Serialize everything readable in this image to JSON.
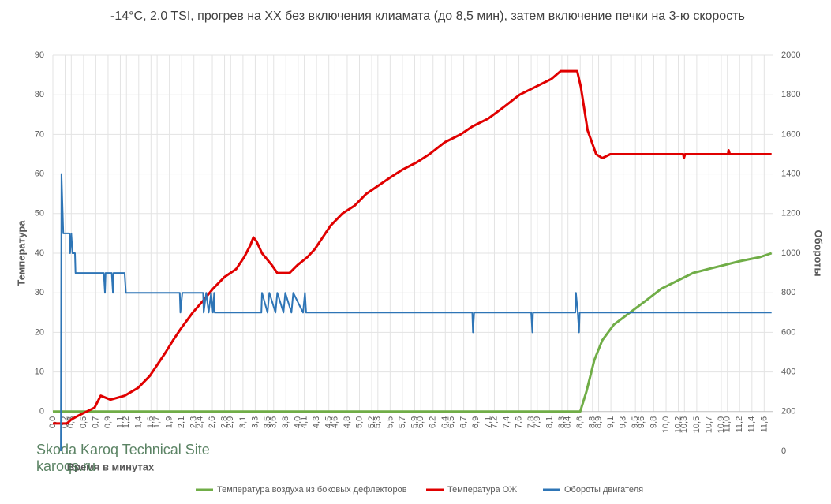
{
  "chart_data": {
    "type": "line",
    "title": "-14°C, 2.0 TSI, прогрев на ХХ без включения клиамата (до 8,5 мин), затем включение печки на 3-ю скорость",
    "ylabel": "Температура",
    "y2label": "Обороты",
    "xlabel": "Время в минутах",
    "watermark": [
      "Skoda Karoq Technical Site",
      "karoqs.ru"
    ],
    "xlim": [
      0,
      11.75
    ],
    "ylim": [
      -10,
      90
    ],
    "y2lim": [
      0,
      2000
    ],
    "yticks": [
      0,
      10,
      20,
      30,
      40,
      50,
      60,
      70,
      80,
      90
    ],
    "y2ticks": [
      0,
      200,
      400,
      600,
      800,
      1000,
      1200,
      1400,
      1600,
      1800,
      2000
    ],
    "xticks": [
      {
        "value": 0,
        "label": "0,0"
      },
      {
        "value": 0.2,
        "label": "0,2"
      },
      {
        "value": 0.3,
        "label": "0,3"
      },
      {
        "value": 0.5,
        "label": "0,5"
      },
      {
        "value": 0.7,
        "label": "0,7"
      },
      {
        "value": 0.9,
        "label": "0,9"
      },
      {
        "value": 1.1,
        "label": "1,1"
      },
      {
        "value": 1.2,
        "label": "1,2"
      },
      {
        "value": 1.4,
        "label": "1,4"
      },
      {
        "value": 1.6,
        "label": "1,6"
      },
      {
        "value": 1.7,
        "label": "1,7"
      },
      {
        "value": 1.9,
        "label": "1,9"
      },
      {
        "value": 2.1,
        "label": "2,1"
      },
      {
        "value": 2.3,
        "label": "2,3"
      },
      {
        "value": 2.4,
        "label": "2,4"
      },
      {
        "value": 2.6,
        "label": "2,6"
      },
      {
        "value": 2.8,
        "label": "2,8"
      },
      {
        "value": 2.9,
        "label": "2,9"
      },
      {
        "value": 3.1,
        "label": "3,1"
      },
      {
        "value": 3.3,
        "label": "3,3"
      },
      {
        "value": 3.5,
        "label": "3,5"
      },
      {
        "value": 3.6,
        "label": "3,6"
      },
      {
        "value": 3.8,
        "label": "3,8"
      },
      {
        "value": 4,
        "label": "4,0"
      },
      {
        "value": 4.1,
        "label": "4,1"
      },
      {
        "value": 4.3,
        "label": "4,3"
      },
      {
        "value": 4.5,
        "label": "4,5"
      },
      {
        "value": 4.6,
        "label": "4,6"
      },
      {
        "value": 4.8,
        "label": "4,8"
      },
      {
        "value": 5,
        "label": "5,0"
      },
      {
        "value": 5.2,
        "label": "5,2"
      },
      {
        "value": 5.3,
        "label": "5,3"
      },
      {
        "value": 5.5,
        "label": "5,5"
      },
      {
        "value": 5.7,
        "label": "5,7"
      },
      {
        "value": 5.9,
        "label": "5,9"
      },
      {
        "value": 6,
        "label": "6,0"
      },
      {
        "value": 6.2,
        "label": "6,2"
      },
      {
        "value": 6.4,
        "label": "6,4"
      },
      {
        "value": 6.5,
        "label": "6,5"
      },
      {
        "value": 6.7,
        "label": "6,7"
      },
      {
        "value": 6.9,
        "label": "6,9"
      },
      {
        "value": 7.1,
        "label": "7,1"
      },
      {
        "value": 7.2,
        "label": "7,2"
      },
      {
        "value": 7.4,
        "label": "7,4"
      },
      {
        "value": 7.6,
        "label": "7,6"
      },
      {
        "value": 7.8,
        "label": "7,8"
      },
      {
        "value": 7.9,
        "label": "7,9"
      },
      {
        "value": 8.1,
        "label": "8,1"
      },
      {
        "value": 8.3,
        "label": "8,3"
      },
      {
        "value": 8.4,
        "label": "8,4"
      },
      {
        "value": 8.6,
        "label": "8,6"
      },
      {
        "value": 8.8,
        "label": "8,8"
      },
      {
        "value": 8.9,
        "label": "8,9"
      },
      {
        "value": 9.1,
        "label": "9,1"
      },
      {
        "value": 9.3,
        "label": "9,3"
      },
      {
        "value": 9.5,
        "label": "9,5"
      },
      {
        "value": 9.6,
        "label": "9,6"
      },
      {
        "value": 9.8,
        "label": "9,8"
      },
      {
        "value": 10,
        "label": "10,0"
      },
      {
        "value": 10.2,
        "label": "10,2"
      },
      {
        "value": 10.3,
        "label": "10,3"
      },
      {
        "value": 10.5,
        "label": "10,5"
      },
      {
        "value": 10.7,
        "label": "10,7"
      },
      {
        "value": 10.9,
        "label": "10,9"
      },
      {
        "value": 11,
        "label": "11,0"
      },
      {
        "value": 11.2,
        "label": "11,2"
      },
      {
        "value": 11.4,
        "label": "11,4"
      },
      {
        "value": 11.6,
        "label": "11,6"
      }
    ],
    "grid": true,
    "series": [
      {
        "name": "Температура воздуха из боковых дефлекторов",
        "color": "#70ad47",
        "x": [
          0,
          8.6,
          8.7,
          8.83,
          8.96,
          9.15,
          9.41,
          9.67,
          9.92,
          10.18,
          10.44,
          10.69,
          10.95,
          11.21,
          11.53,
          11.72
        ],
        "values": [
          0,
          0,
          5,
          13,
          18,
          22,
          25,
          28,
          31,
          33,
          35,
          36,
          37,
          38,
          39,
          40
        ]
      },
      {
        "name": "Температура ОЖ",
        "color": "#e00000",
        "x": [
          0,
          0.23,
          0.3,
          0.42,
          0.55,
          0.68,
          0.78,
          0.94,
          1.17,
          1.39,
          1.58,
          1.71,
          1.84,
          1.96,
          2.09,
          2.28,
          2.45,
          2.61,
          2.8,
          2.99,
          3.12,
          3.22,
          3.27,
          3.32,
          3.41,
          3.57,
          3.66,
          3.86,
          3.99,
          4.15,
          4.27,
          4.4,
          4.53,
          4.72,
          4.92,
          5.11,
          5.3,
          5.49,
          5.69,
          5.94,
          6.14,
          6.39,
          6.65,
          6.84,
          7.1,
          7.36,
          7.61,
          7.87,
          8.13,
          8.28,
          8.55,
          8.61,
          8.67,
          8.72,
          8.79,
          8.86,
          8.96,
          9.09,
          10.28,
          10.29,
          10.31,
          11.01,
          11.02,
          11.04,
          11.72
        ],
        "values": [
          -3,
          -3,
          -2,
          -1,
          0,
          1,
          4,
          3,
          4,
          6,
          9,
          12,
          15,
          18,
          21,
          25,
          28,
          31,
          34,
          36,
          39,
          42,
          44,
          43,
          40,
          37,
          35,
          35,
          37,
          39,
          41,
          44,
          47,
          50,
          52,
          55,
          57,
          59,
          61,
          63,
          65,
          68,
          70,
          72,
          74,
          77,
          80,
          82,
          84,
          86,
          86,
          82,
          76,
          71,
          68,
          65,
          64,
          65,
          65,
          64,
          65,
          65,
          66,
          65,
          65
        ]
      },
      {
        "name": "Обороты двигателя",
        "color": "#2e75b6",
        "axis": "y2",
        "x": [
          0.13,
          0.14,
          0.17,
          0.27,
          0.28,
          0.3,
          0.32,
          0.36,
          0.37,
          0.83,
          0.85,
          0.86,
          0.96,
          0.98,
          0.99,
          1.17,
          1.19,
          2.07,
          2.08,
          2.11,
          2.45,
          2.46,
          2.5,
          2.54,
          2.58,
          2.61,
          2.63,
          2.64,
          3.4,
          3.41,
          3.5,
          3.53,
          3.63,
          3.66,
          3.76,
          3.79,
          3.89,
          3.92,
          4.08,
          4.11,
          4.13,
          6.84,
          6.85,
          6.87,
          7.8,
          7.82,
          7.83,
          8.52,
          8.53,
          8.56,
          8.58,
          8.59,
          11.72
        ],
        "values": [
          0,
          1400,
          1100,
          1100,
          1000,
          1100,
          1000,
          1000,
          900,
          900,
          800,
          900,
          900,
          800,
          900,
          900,
          800,
          800,
          700,
          800,
          800,
          700,
          800,
          700,
          800,
          700,
          800,
          700,
          700,
          800,
          700,
          800,
          700,
          800,
          700,
          800,
          700,
          800,
          700,
          800,
          700,
          700,
          600,
          700,
          700,
          600,
          700,
          700,
          800,
          700,
          600,
          700,
          700
        ]
      }
    ]
  }
}
